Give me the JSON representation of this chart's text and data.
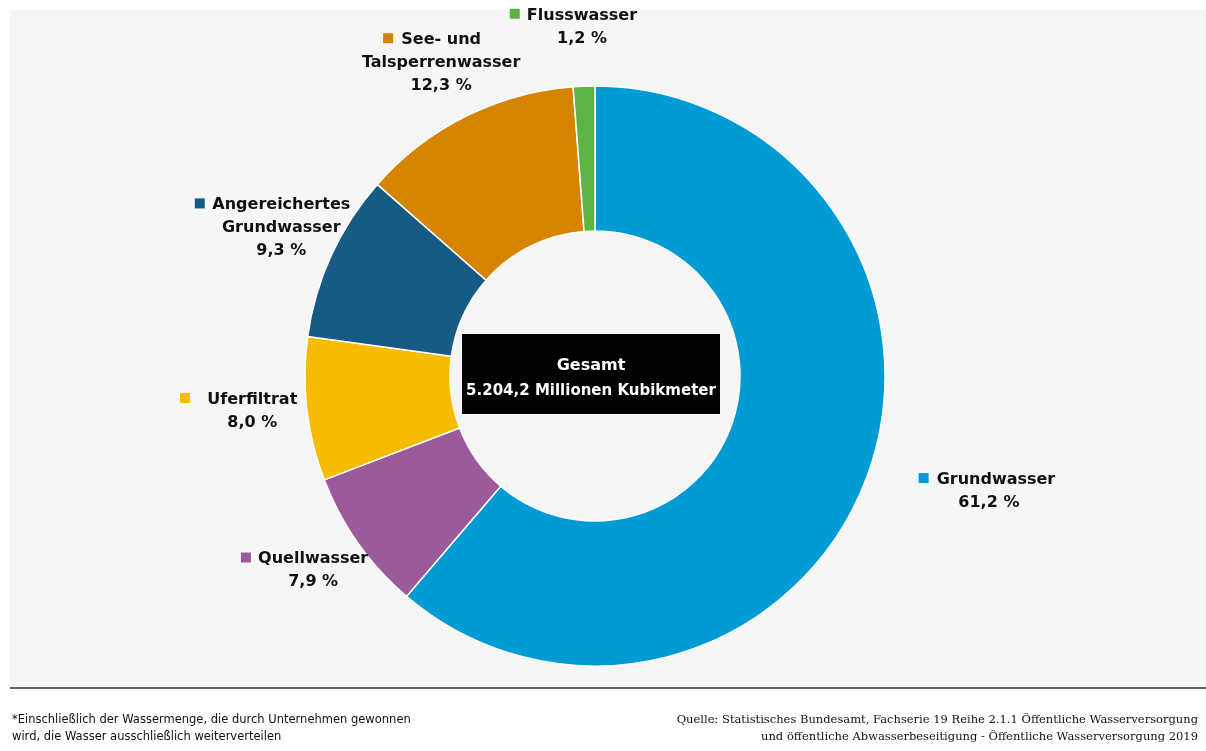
{
  "chart_data": {
    "type": "donut",
    "categories": [
      "Grundwasser",
      "Quellwasser",
      "Uferfiltrat",
      "Angereichertes Grundwasser",
      "See- und Talsperrenwasser",
      "Flusswasser"
    ],
    "values": [
      61.2,
      7.9,
      8.0,
      9.3,
      12.3,
      1.2
    ],
    "value_labels": [
      "61,2 %",
      "7,9 %",
      "8,0 %",
      "9,3 %",
      "12,3 %",
      "1,2 %"
    ],
    "legend": "left",
    "colors": [
      "#009bd5",
      "#9b5a9b",
      "#f7bb00",
      "#155b84",
      "#d68400",
      "#5cb444"
    ],
    "annotations": [
      "Gesamt",
      "5.204,2 Millionen Kubikmeter",
      "*Einschließlich der Wassermenge, die durch Unternehmen gewonnen wird, die Wasser ausschließlich weiterverteilen",
      "Quelle: Statistisches Bundesamt, Fachserie 19  Reihe 2.1.1 Öffentliche Wasserversorgung und öffentliche Abwasserbeseitigung - Öffentliche Wasserversorgung 2019"
    ]
  }
}
